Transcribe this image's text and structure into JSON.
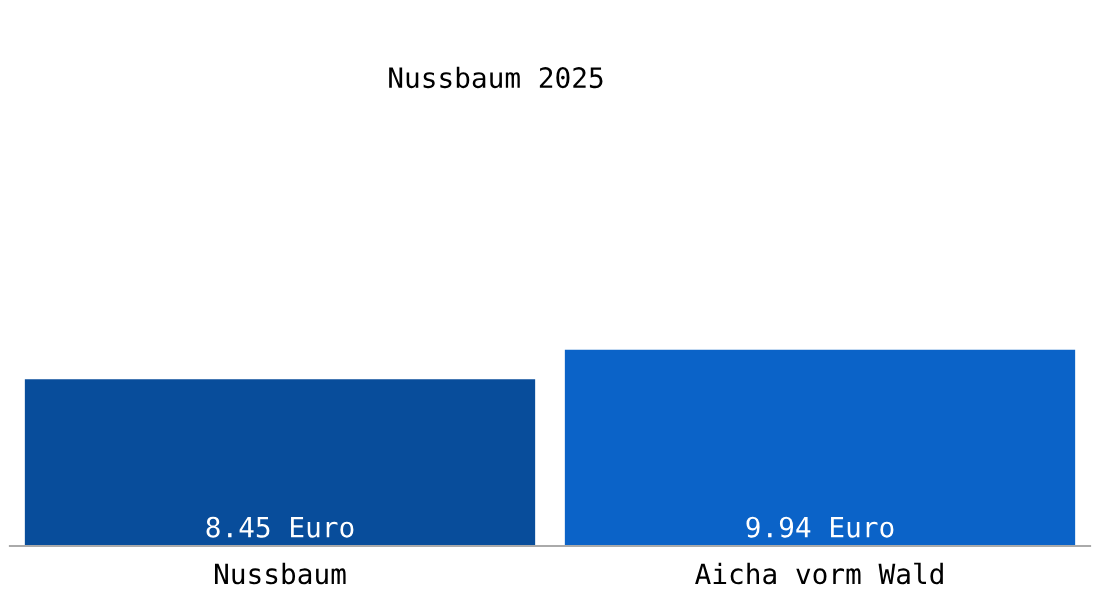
{
  "chart_data": {
    "type": "bar",
    "title": "Nussbaum 2025",
    "categories": [
      "Nussbaum",
      "Aicha vorm Wald"
    ],
    "values": [
      8.45,
      9.94
    ],
    "colors": [
      "#084d9b",
      "#0b63c8"
    ],
    "value_labels": [
      "8.45 Euro",
      "9.94 Euro"
    ],
    "tick_labels": "x",
    "grid": false,
    "legend": false
  }
}
